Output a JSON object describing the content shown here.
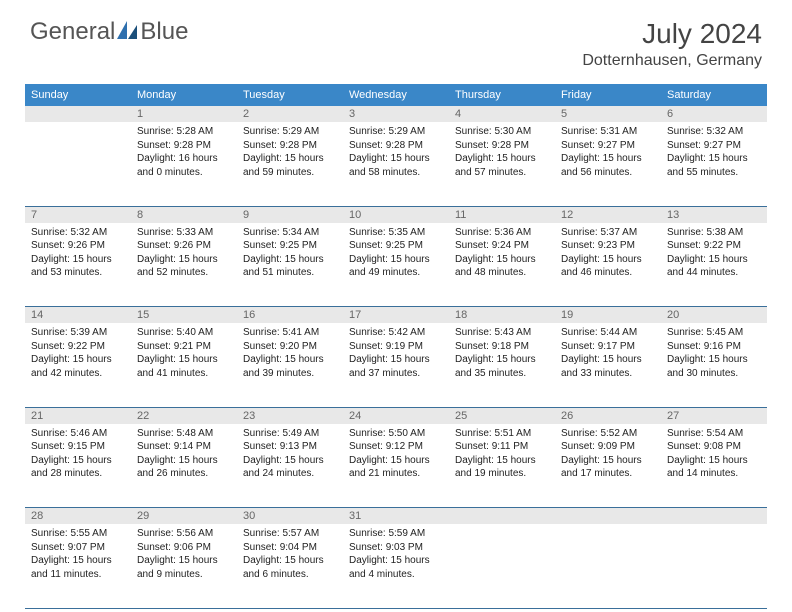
{
  "logo": {
    "text1": "General",
    "text2": "Blue"
  },
  "title": "July 2024",
  "location": "Dotternhausen, Germany",
  "colors": {
    "header_bg": "#3a87c8",
    "header_text": "#ffffff",
    "daynum_bg": "#e8e8e8",
    "row_border": "#3a6f9a",
    "logo_accent": "#2e6fae"
  },
  "weekdays": [
    "Sunday",
    "Monday",
    "Tuesday",
    "Wednesday",
    "Thursday",
    "Friday",
    "Saturday"
  ],
  "weeks": [
    {
      "nums": [
        "",
        "1",
        "2",
        "3",
        "4",
        "5",
        "6"
      ],
      "cells": [
        null,
        {
          "sunrise": "Sunrise: 5:28 AM",
          "sunset": "Sunset: 9:28 PM",
          "day1": "Daylight: 16 hours",
          "day2": "and 0 minutes."
        },
        {
          "sunrise": "Sunrise: 5:29 AM",
          "sunset": "Sunset: 9:28 PM",
          "day1": "Daylight: 15 hours",
          "day2": "and 59 minutes."
        },
        {
          "sunrise": "Sunrise: 5:29 AM",
          "sunset": "Sunset: 9:28 PM",
          "day1": "Daylight: 15 hours",
          "day2": "and 58 minutes."
        },
        {
          "sunrise": "Sunrise: 5:30 AM",
          "sunset": "Sunset: 9:28 PM",
          "day1": "Daylight: 15 hours",
          "day2": "and 57 minutes."
        },
        {
          "sunrise": "Sunrise: 5:31 AM",
          "sunset": "Sunset: 9:27 PM",
          "day1": "Daylight: 15 hours",
          "day2": "and 56 minutes."
        },
        {
          "sunrise": "Sunrise: 5:32 AM",
          "sunset": "Sunset: 9:27 PM",
          "day1": "Daylight: 15 hours",
          "day2": "and 55 minutes."
        }
      ]
    },
    {
      "nums": [
        "7",
        "8",
        "9",
        "10",
        "11",
        "12",
        "13"
      ],
      "cells": [
        {
          "sunrise": "Sunrise: 5:32 AM",
          "sunset": "Sunset: 9:26 PM",
          "day1": "Daylight: 15 hours",
          "day2": "and 53 minutes."
        },
        {
          "sunrise": "Sunrise: 5:33 AM",
          "sunset": "Sunset: 9:26 PM",
          "day1": "Daylight: 15 hours",
          "day2": "and 52 minutes."
        },
        {
          "sunrise": "Sunrise: 5:34 AM",
          "sunset": "Sunset: 9:25 PM",
          "day1": "Daylight: 15 hours",
          "day2": "and 51 minutes."
        },
        {
          "sunrise": "Sunrise: 5:35 AM",
          "sunset": "Sunset: 9:25 PM",
          "day1": "Daylight: 15 hours",
          "day2": "and 49 minutes."
        },
        {
          "sunrise": "Sunrise: 5:36 AM",
          "sunset": "Sunset: 9:24 PM",
          "day1": "Daylight: 15 hours",
          "day2": "and 48 minutes."
        },
        {
          "sunrise": "Sunrise: 5:37 AM",
          "sunset": "Sunset: 9:23 PM",
          "day1": "Daylight: 15 hours",
          "day2": "and 46 minutes."
        },
        {
          "sunrise": "Sunrise: 5:38 AM",
          "sunset": "Sunset: 9:22 PM",
          "day1": "Daylight: 15 hours",
          "day2": "and 44 minutes."
        }
      ]
    },
    {
      "nums": [
        "14",
        "15",
        "16",
        "17",
        "18",
        "19",
        "20"
      ],
      "cells": [
        {
          "sunrise": "Sunrise: 5:39 AM",
          "sunset": "Sunset: 9:22 PM",
          "day1": "Daylight: 15 hours",
          "day2": "and 42 minutes."
        },
        {
          "sunrise": "Sunrise: 5:40 AM",
          "sunset": "Sunset: 9:21 PM",
          "day1": "Daylight: 15 hours",
          "day2": "and 41 minutes."
        },
        {
          "sunrise": "Sunrise: 5:41 AM",
          "sunset": "Sunset: 9:20 PM",
          "day1": "Daylight: 15 hours",
          "day2": "and 39 minutes."
        },
        {
          "sunrise": "Sunrise: 5:42 AM",
          "sunset": "Sunset: 9:19 PM",
          "day1": "Daylight: 15 hours",
          "day2": "and 37 minutes."
        },
        {
          "sunrise": "Sunrise: 5:43 AM",
          "sunset": "Sunset: 9:18 PM",
          "day1": "Daylight: 15 hours",
          "day2": "and 35 minutes."
        },
        {
          "sunrise": "Sunrise: 5:44 AM",
          "sunset": "Sunset: 9:17 PM",
          "day1": "Daylight: 15 hours",
          "day2": "and 33 minutes."
        },
        {
          "sunrise": "Sunrise: 5:45 AM",
          "sunset": "Sunset: 9:16 PM",
          "day1": "Daylight: 15 hours",
          "day2": "and 30 minutes."
        }
      ]
    },
    {
      "nums": [
        "21",
        "22",
        "23",
        "24",
        "25",
        "26",
        "27"
      ],
      "cells": [
        {
          "sunrise": "Sunrise: 5:46 AM",
          "sunset": "Sunset: 9:15 PM",
          "day1": "Daylight: 15 hours",
          "day2": "and 28 minutes."
        },
        {
          "sunrise": "Sunrise: 5:48 AM",
          "sunset": "Sunset: 9:14 PM",
          "day1": "Daylight: 15 hours",
          "day2": "and 26 minutes."
        },
        {
          "sunrise": "Sunrise: 5:49 AM",
          "sunset": "Sunset: 9:13 PM",
          "day1": "Daylight: 15 hours",
          "day2": "and 24 minutes."
        },
        {
          "sunrise": "Sunrise: 5:50 AM",
          "sunset": "Sunset: 9:12 PM",
          "day1": "Daylight: 15 hours",
          "day2": "and 21 minutes."
        },
        {
          "sunrise": "Sunrise: 5:51 AM",
          "sunset": "Sunset: 9:11 PM",
          "day1": "Daylight: 15 hours",
          "day2": "and 19 minutes."
        },
        {
          "sunrise": "Sunrise: 5:52 AM",
          "sunset": "Sunset: 9:09 PM",
          "day1": "Daylight: 15 hours",
          "day2": "and 17 minutes."
        },
        {
          "sunrise": "Sunrise: 5:54 AM",
          "sunset": "Sunset: 9:08 PM",
          "day1": "Daylight: 15 hours",
          "day2": "and 14 minutes."
        }
      ]
    },
    {
      "nums": [
        "28",
        "29",
        "30",
        "31",
        "",
        "",
        ""
      ],
      "cells": [
        {
          "sunrise": "Sunrise: 5:55 AM",
          "sunset": "Sunset: 9:07 PM",
          "day1": "Daylight: 15 hours",
          "day2": "and 11 minutes."
        },
        {
          "sunrise": "Sunrise: 5:56 AM",
          "sunset": "Sunset: 9:06 PM",
          "day1": "Daylight: 15 hours",
          "day2": "and 9 minutes."
        },
        {
          "sunrise": "Sunrise: 5:57 AM",
          "sunset": "Sunset: 9:04 PM",
          "day1": "Daylight: 15 hours",
          "day2": "and 6 minutes."
        },
        {
          "sunrise": "Sunrise: 5:59 AM",
          "sunset": "Sunset: 9:03 PM",
          "day1": "Daylight: 15 hours",
          "day2": "and 4 minutes."
        },
        null,
        null,
        null
      ]
    }
  ]
}
